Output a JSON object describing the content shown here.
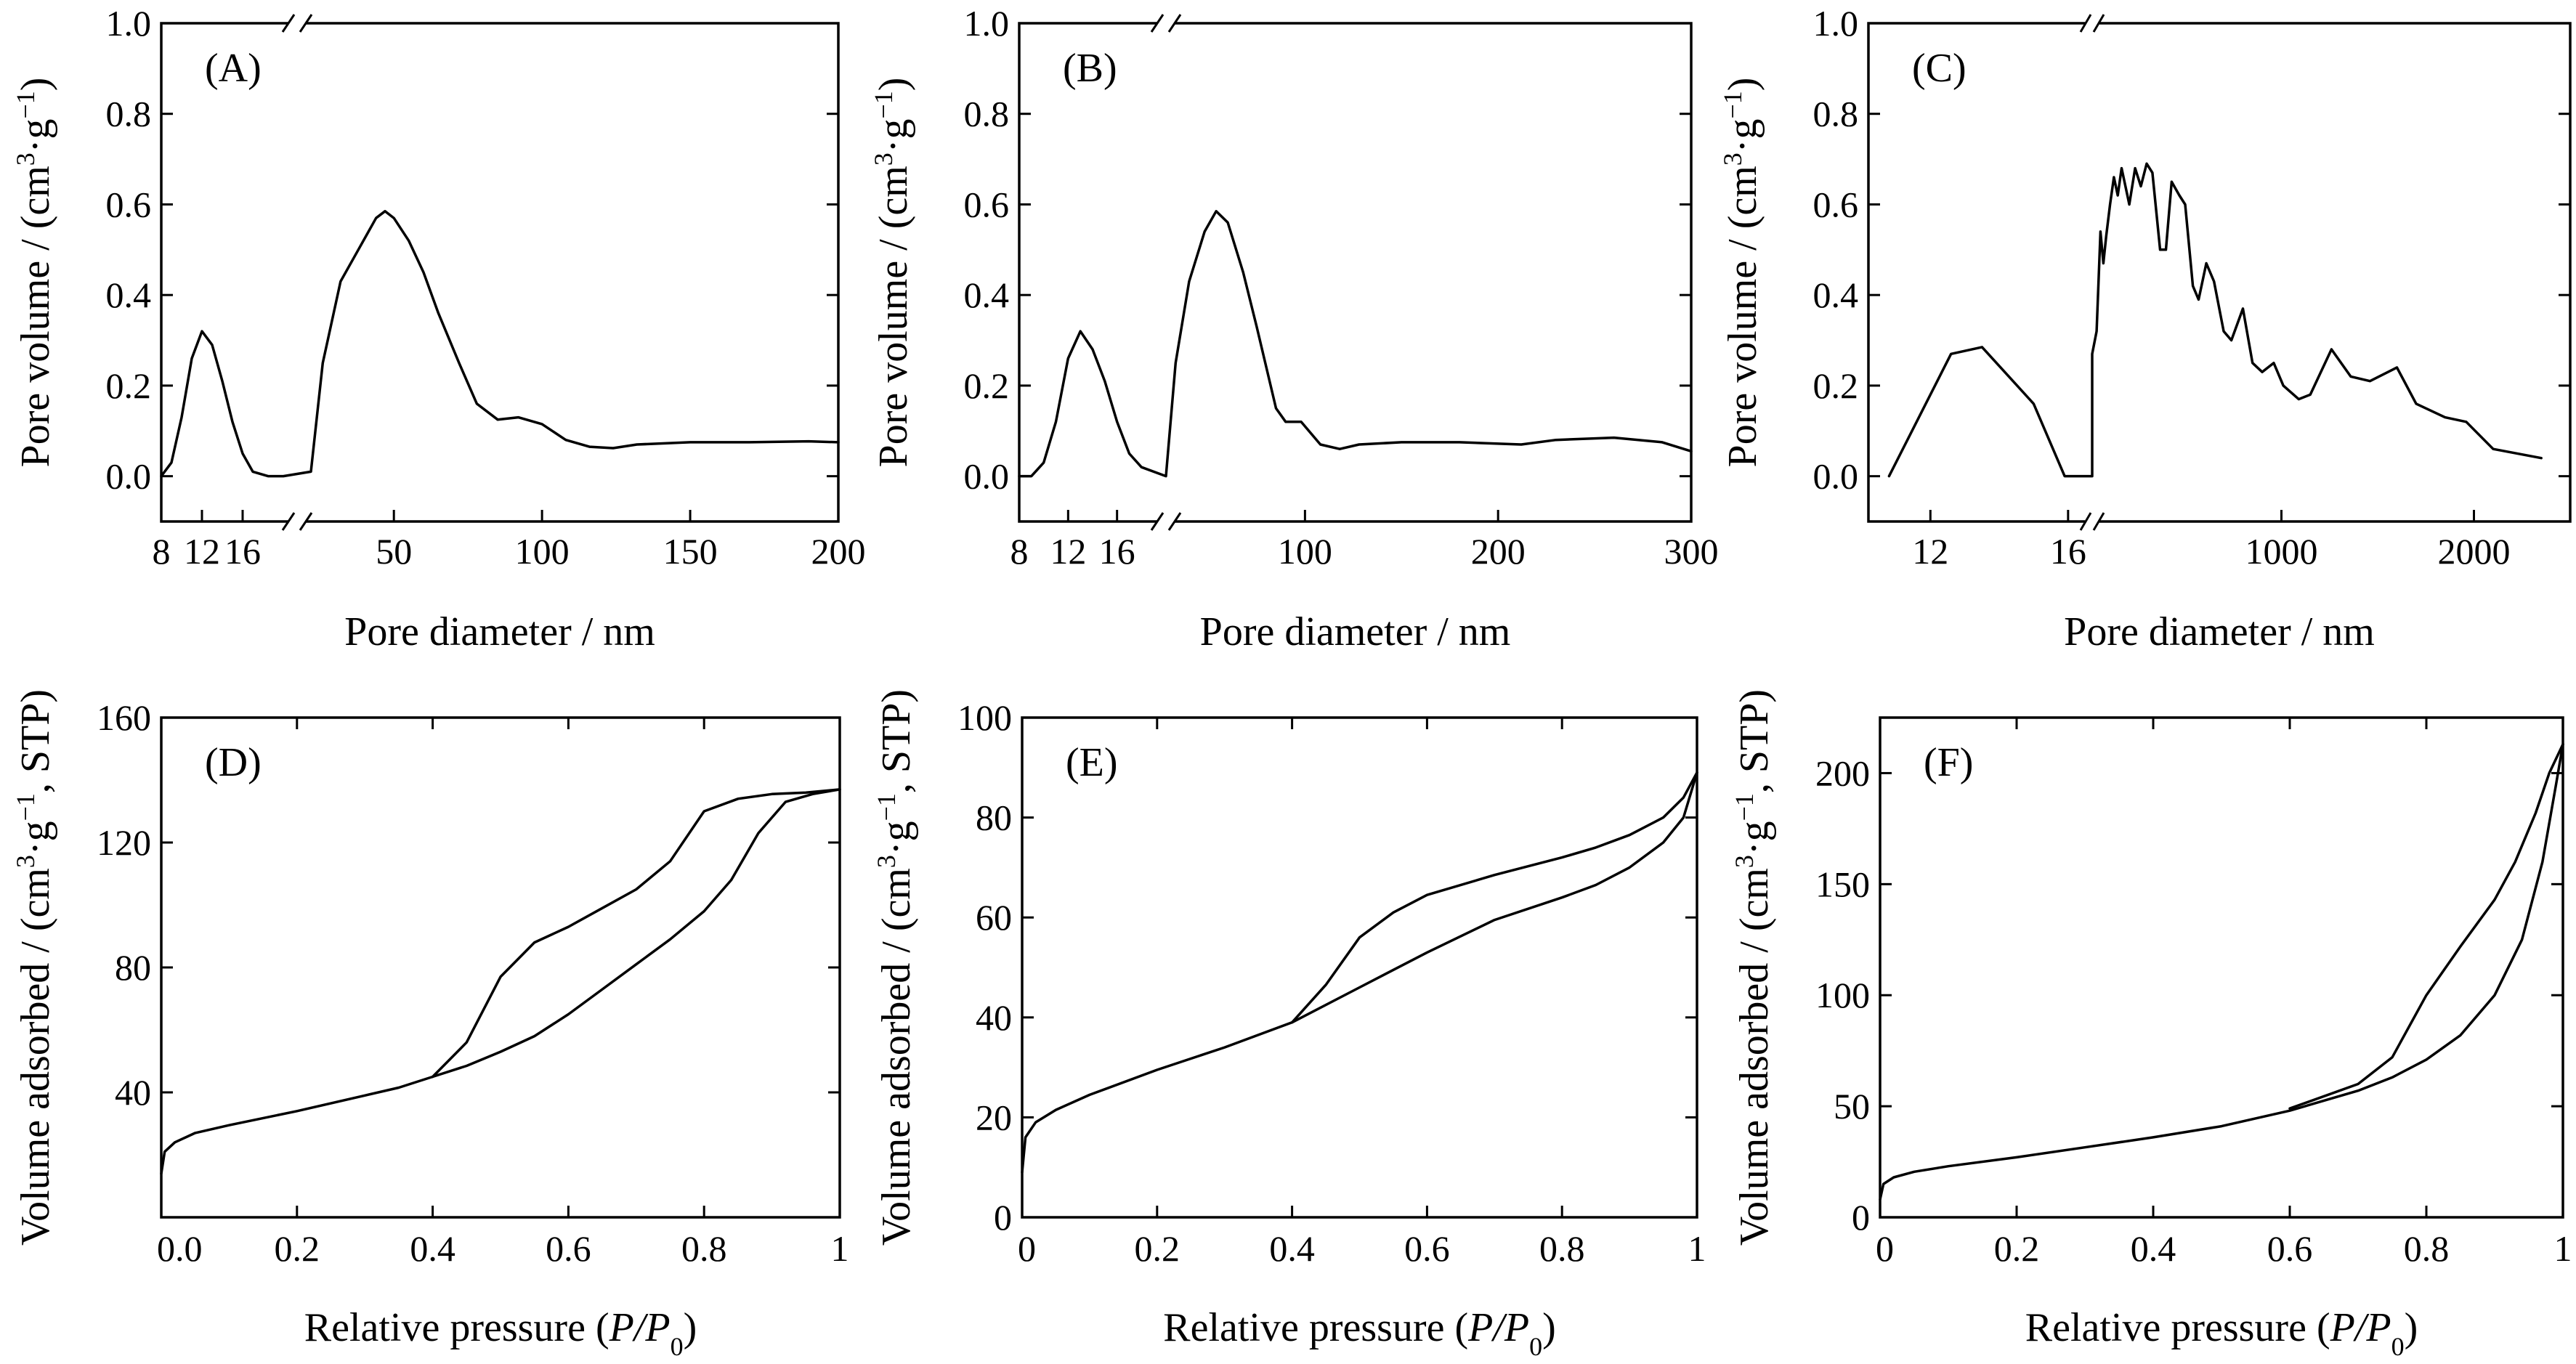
{
  "chart_data": [
    {
      "id": "A",
      "type": "line",
      "panel_label": "(A)",
      "xlabel": "Pore diameter / nm",
      "ylabel": "Pore volume / (cm³·g⁻¹)",
      "ylim": [
        -0.1,
        1.0
      ],
      "yticks": [
        0.0,
        0.2,
        0.4,
        0.6,
        0.8,
        1.0
      ],
      "ytick_labels": [
        "0.0",
        "0.2",
        "0.4",
        "0.6",
        "0.8",
        "1.0"
      ],
      "x_axis_break": true,
      "x_segments": [
        {
          "range": [
            8,
            20
          ],
          "ticks": [
            8,
            12,
            16
          ],
          "tick_labels": [
            "8",
            "12",
            "16"
          ]
        },
        {
          "range": [
            22,
            200
          ],
          "ticks": [
            50,
            100,
            150,
            200
          ],
          "tick_labels": [
            "50",
            "100",
            "150",
            "200"
          ]
        }
      ],
      "series": [
        {
          "points": [
            [
              8,
              0.0
            ],
            [
              9,
              0.03
            ],
            [
              10,
              0.13
            ],
            [
              11,
              0.26
            ],
            [
              12,
              0.32
            ],
            [
              13,
              0.29
            ],
            [
              14,
              0.21
            ],
            [
              15,
              0.12
            ],
            [
              16,
              0.05
            ],
            [
              17,
              0.01
            ],
            [
              18.5,
              0.0
            ],
            [
              20,
              0.0
            ],
            [
              22,
              0.01
            ],
            [
              26,
              0.25
            ],
            [
              28,
              0.31
            ],
            [
              32,
              0.43
            ],
            [
              38,
              0.5
            ],
            [
              44,
              0.57
            ],
            [
              47,
              0.585
            ],
            [
              50,
              0.57
            ],
            [
              55,
              0.52
            ],
            [
              60,
              0.45
            ],
            [
              65,
              0.36
            ],
            [
              72,
              0.25
            ],
            [
              78,
              0.16
            ],
            [
              85,
              0.125
            ],
            [
              92,
              0.13
            ],
            [
              100,
              0.115
            ],
            [
              108,
              0.08
            ],
            [
              116,
              0.065
            ],
            [
              124,
              0.062
            ],
            [
              132,
              0.07
            ],
            [
              150,
              0.075
            ],
            [
              170,
              0.075
            ],
            [
              190,
              0.077
            ],
            [
              200,
              0.075
            ]
          ]
        }
      ]
    },
    {
      "id": "B",
      "type": "line",
      "panel_label": "(B)",
      "xlabel": "Pore diameter / nm",
      "ylabel": "Pore volume / (cm³·g⁻¹)",
      "ylim": [
        -0.1,
        1.0
      ],
      "yticks": [
        0.0,
        0.2,
        0.4,
        0.6,
        0.8,
        1.0
      ],
      "ytick_labels": [
        "0.0",
        "0.2",
        "0.4",
        "0.6",
        "0.8",
        "1.0"
      ],
      "x_axis_break": true,
      "x_segments": [
        {
          "range": [
            8,
            20
          ],
          "ticks": [
            8,
            12,
            16
          ],
          "tick_labels": [
            "8",
            "12",
            "16"
          ]
        },
        {
          "range": [
            28,
            300
          ],
          "ticks": [
            100,
            200,
            300
          ],
          "tick_labels": [
            "100",
            "200",
            "300"
          ]
        }
      ],
      "series": [
        {
          "points": [
            [
              8,
              0.0
            ],
            [
              9,
              0.0
            ],
            [
              10,
              0.03
            ],
            [
              11,
              0.12
            ],
            [
              12,
              0.26
            ],
            [
              13,
              0.32
            ],
            [
              14,
              0.28
            ],
            [
              15,
              0.21
            ],
            [
              16,
              0.12
            ],
            [
              17,
              0.05
            ],
            [
              18,
              0.02
            ],
            [
              20,
              0.0
            ],
            [
              28,
              0.0
            ],
            [
              33,
              0.25
            ],
            [
              40,
              0.43
            ],
            [
              48,
              0.54
            ],
            [
              54,
              0.585
            ],
            [
              60,
              0.56
            ],
            [
              68,
              0.45
            ],
            [
              75,
              0.33
            ],
            [
              85,
              0.15
            ],
            [
              90,
              0.12
            ],
            [
              98,
              0.12
            ],
            [
              108,
              0.07
            ],
            [
              118,
              0.06
            ],
            [
              128,
              0.07
            ],
            [
              150,
              0.075
            ],
            [
              180,
              0.075
            ],
            [
              212,
              0.07
            ],
            [
              230,
              0.08
            ],
            [
              260,
              0.085
            ],
            [
              285,
              0.075
            ],
            [
              300,
              0.055
            ]
          ]
        }
      ]
    },
    {
      "id": "C",
      "type": "line",
      "panel_label": "(C)",
      "xlabel": "Pore diameter / nm",
      "ylabel": "Pore volume / (cm³·g⁻¹)",
      "ylim": [
        -0.1,
        1.0
      ],
      "yticks": [
        0.0,
        0.2,
        0.4,
        0.6,
        0.8,
        1.0
      ],
      "ytick_labels": [
        "0.0",
        "0.2",
        "0.4",
        "0.6",
        "0.8",
        "1.0"
      ],
      "x_axis_break": true,
      "x_segments": [
        {
          "range": [
            10.2,
            16.7
          ],
          "ticks": [
            12,
            16
          ],
          "tick_labels": [
            "12",
            "16"
          ]
        },
        {
          "range": [
            17,
            2500
          ],
          "ticks": [
            1000,
            2000
          ],
          "tick_labels": [
            "1000",
            "2000"
          ]
        }
      ],
      "series": [
        {
          "points": [
            [
              10.8,
              0.0
            ],
            [
              12.6,
              0.27
            ],
            [
              13.5,
              0.285
            ],
            [
              15,
              0.16
            ],
            [
              15.9,
              0.0
            ],
            [
              16.3,
              0.0
            ],
            [
              16.7,
              0.0
            ],
            [
              17,
              0.27
            ],
            [
              40,
              0.32
            ],
            [
              60,
              0.54
            ],
            [
              75,
              0.47
            ],
            [
              90,
              0.53
            ],
            [
              110,
              0.6
            ],
            [
              130,
              0.66
            ],
            [
              150,
              0.62
            ],
            [
              170,
              0.68
            ],
            [
              190,
              0.64
            ],
            [
              210,
              0.6
            ],
            [
              240,
              0.68
            ],
            [
              270,
              0.64
            ],
            [
              300,
              0.69
            ],
            [
              330,
              0.67
            ],
            [
              370,
              0.5
            ],
            [
              400,
              0.5
            ],
            [
              430,
              0.65
            ],
            [
              470,
              0.62
            ],
            [
              500,
              0.6
            ],
            [
              540,
              0.42
            ],
            [
              570,
              0.39
            ],
            [
              610,
              0.47
            ],
            [
              650,
              0.43
            ],
            [
              700,
              0.32
            ],
            [
              740,
              0.3
            ],
            [
              800,
              0.37
            ],
            [
              850,
              0.25
            ],
            [
              900,
              0.23
            ],
            [
              960,
              0.25
            ],
            [
              1010,
              0.2
            ],
            [
              1090,
              0.17
            ],
            [
              1150,
              0.18
            ],
            [
              1260,
              0.28
            ],
            [
              1360,
              0.22
            ],
            [
              1460,
              0.21
            ],
            [
              1600,
              0.24
            ],
            [
              1700,
              0.16
            ],
            [
              1850,
              0.13
            ],
            [
              1960,
              0.12
            ],
            [
              2100,
              0.06
            ],
            [
              2350,
              0.04
            ]
          ]
        }
      ]
    },
    {
      "id": "D",
      "type": "line",
      "panel_label": "(D)",
      "xlabel": "Relative pressure (P/P0)",
      "ylabel": "Volume adsorbed / (cm³·g⁻¹, STP)",
      "xlim": [
        0,
        1
      ],
      "ylim": [
        0,
        160
      ],
      "xticks": [
        0,
        0.2,
        0.4,
        0.6,
        0.8,
        1
      ],
      "xtick_labels": [
        "0.0",
        "0.2",
        "0.4",
        "0.6",
        "0.8",
        "1"
      ],
      "yticks": [
        40,
        80,
        120,
        160
      ],
      "ytick_labels": [
        "40",
        "80",
        "120",
        "160"
      ],
      "series": [
        {
          "points": [
            [
              0.0,
              14
            ],
            [
              0.005,
              21
            ],
            [
              0.02,
              24
            ],
            [
              0.05,
              27
            ],
            [
              0.1,
              29.5
            ],
            [
              0.2,
              34
            ],
            [
              0.3,
              39
            ],
            [
              0.35,
              41.5
            ],
            [
              0.4,
              45
            ],
            [
              0.45,
              48.5
            ],
            [
              0.5,
              53
            ],
            [
              0.55,
              58
            ],
            [
              0.6,
              65
            ],
            [
              0.65,
              73
            ],
            [
              0.7,
              81
            ],
            [
              0.75,
              89
            ],
            [
              0.8,
              98
            ],
            [
              0.84,
              108
            ],
            [
              0.88,
              123
            ],
            [
              0.92,
              133
            ],
            [
              0.96,
              135.5
            ],
            [
              1.0,
              137
            ]
          ]
        },
        {
          "points": [
            [
              0.4,
              45
            ],
            [
              0.45,
              56
            ],
            [
              0.5,
              77
            ],
            [
              0.55,
              88
            ],
            [
              0.6,
              93
            ],
            [
              0.65,
              99
            ],
            [
              0.7,
              105
            ],
            [
              0.75,
              114
            ],
            [
              0.8,
              130
            ],
            [
              0.85,
              134
            ],
            [
              0.9,
              135.5
            ],
            [
              0.95,
              136
            ],
            [
              1.0,
              137
            ]
          ]
        }
      ]
    },
    {
      "id": "E",
      "type": "line",
      "panel_label": "(E)",
      "xlabel": "Relative pressure (P/P0)",
      "ylabel": "Volume adsorbed / (cm³·g⁻¹, STP)",
      "xlim": [
        0,
        1
      ],
      "ylim": [
        0,
        100
      ],
      "xticks": [
        0,
        0.2,
        0.4,
        0.6,
        0.8,
        1
      ],
      "xtick_labels": [
        "0",
        "0.2",
        "0.4",
        "0.6",
        "0.8",
        "1"
      ],
      "yticks": [
        0,
        20,
        40,
        60,
        80,
        100
      ],
      "ytick_labels": [
        "0",
        "20",
        "40",
        "60",
        "80",
        "100"
      ],
      "series": [
        {
          "points": [
            [
              0.0,
              9
            ],
            [
              0.005,
              16
            ],
            [
              0.02,
              19
            ],
            [
              0.05,
              21.5
            ],
            [
              0.1,
              24.5
            ],
            [
              0.2,
              29.5
            ],
            [
              0.3,
              34
            ],
            [
              0.4,
              39
            ],
            [
              0.5,
              46
            ],
            [
              0.6,
              53
            ],
            [
              0.7,
              59.5
            ],
            [
              0.8,
              64
            ],
            [
              0.85,
              66.5
            ],
            [
              0.9,
              70
            ],
            [
              0.95,
              75
            ],
            [
              0.98,
              80
            ],
            [
              1.0,
              89
            ]
          ]
        },
        {
          "points": [
            [
              0.4,
              39
            ],
            [
              0.45,
              46.5
            ],
            [
              0.5,
              56
            ],
            [
              0.55,
              61
            ],
            [
              0.6,
              64.5
            ],
            [
              0.7,
              68.5
            ],
            [
              0.8,
              72
            ],
            [
              0.85,
              74
            ],
            [
              0.9,
              76.5
            ],
            [
              0.95,
              80
            ],
            [
              0.98,
              84
            ],
            [
              1.0,
              89
            ]
          ]
        }
      ]
    },
    {
      "id": "F",
      "type": "line",
      "panel_label": "(F)",
      "xlabel": "Relative pressure (P/P0)",
      "ylabel": "Volume adsorbed / (cm³·g⁻¹, STP)",
      "xlim": [
        0,
        1
      ],
      "ylim": [
        0,
        225
      ],
      "xticks": [
        0,
        0.2,
        0.4,
        0.6,
        0.8,
        1
      ],
      "xtick_labels": [
        "0",
        "0.2",
        "0.4",
        "0.6",
        "0.8",
        "1"
      ],
      "yticks": [
        0,
        50,
        100,
        150,
        200
      ],
      "ytick_labels": [
        "0",
        "50",
        "100",
        "150",
        "200"
      ],
      "series": [
        {
          "points": [
            [
              0.0,
              8
            ],
            [
              0.005,
              15
            ],
            [
              0.02,
              18
            ],
            [
              0.05,
              20.5
            ],
            [
              0.1,
              23
            ],
            [
              0.2,
              27
            ],
            [
              0.3,
              31.5
            ],
            [
              0.4,
              36
            ],
            [
              0.5,
              41
            ],
            [
              0.6,
              48
            ],
            [
              0.7,
              57
            ],
            [
              0.75,
              63
            ],
            [
              0.8,
              71
            ],
            [
              0.85,
              82
            ],
            [
              0.9,
              100
            ],
            [
              0.94,
              125
            ],
            [
              0.97,
              160
            ],
            [
              0.99,
              195
            ],
            [
              1.0,
              213
            ]
          ]
        },
        {
          "points": [
            [
              0.6,
              49
            ],
            [
              0.7,
              60
            ],
            [
              0.75,
              72
            ],
            [
              0.8,
              100
            ],
            [
              0.85,
              122
            ],
            [
              0.9,
              143
            ],
            [
              0.93,
              160
            ],
            [
              0.96,
              182
            ],
            [
              0.98,
              200
            ],
            [
              1.0,
              213
            ]
          ]
        }
      ]
    }
  ]
}
